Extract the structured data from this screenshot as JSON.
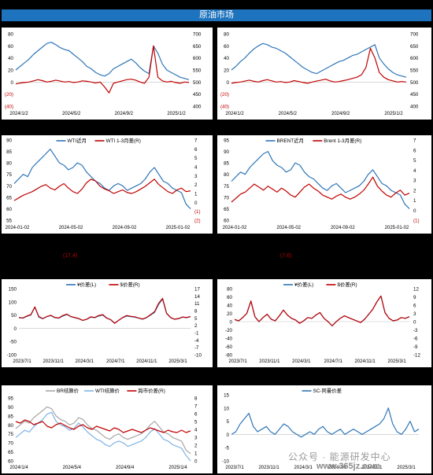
{
  "banner_title": "原油市场",
  "notes": {
    "left_mid": "(17.4)",
    "right_mid": "(7.6)"
  },
  "watermark": "公众号 · 能源研发中心",
  "watermark_site": "www.365jz.com",
  "colors": {
    "blue": "#2e75b6",
    "red": "#c00000",
    "gray": "#a6a6a6",
    "lightblue": "#7fb2e5"
  },
  "chart_data": [
    {
      "type": "line",
      "id": "p1",
      "x_ticks": [
        "2024/1/2",
        "2024/5/2",
        "2024/9/2",
        "2025/1/2"
      ],
      "y_left": {
        "ticks": [
          "80",
          "60",
          "40",
          "20",
          "0",
          "(20)",
          "(40)"
        ],
        "range": [
          -40,
          80
        ]
      },
      "y_right": {
        "ticks": [
          "700",
          "650",
          "600",
          "550",
          "500",
          "450",
          "400"
        ],
        "range": [
          400,
          700
        ]
      },
      "series": [
        {
          "axis": "left",
          "color": "blue",
          "values": [
            20,
            26,
            32,
            38,
            46,
            52,
            58,
            64,
            66,
            62,
            57,
            54,
            52,
            46,
            40,
            34,
            26,
            22,
            16,
            12,
            10,
            14,
            22,
            26,
            30,
            34,
            38,
            32,
            24,
            18,
            14,
            60,
            48,
            30,
            20,
            16,
            12,
            8,
            6,
            4
          ]
        },
        {
          "axis": "right",
          "color": "red",
          "values": [
            492,
            496,
            498,
            500,
            505,
            510,
            506,
            500,
            503,
            508,
            504,
            500,
            502,
            498,
            500,
            505,
            503,
            500,
            496,
            500,
            480,
            455,
            495,
            500,
            505,
            510,
            512,
            508,
            500,
            495,
            520,
            650,
            520,
            505,
            500,
            503,
            498,
            495,
            500,
            498
          ]
        }
      ]
    },
    {
      "type": "line",
      "id": "p2",
      "x_ticks": [
        "2024/1/2",
        "2024/5/2",
        "2024/9/2",
        "2025/1/2"
      ],
      "y_left": {
        "ticks": [
          "80",
          "60",
          "40",
          "20",
          "0",
          "(20)",
          "(40)"
        ],
        "range": [
          -40,
          80
        ]
      },
      "y_right": {
        "ticks": [
          "700",
          "650",
          "600",
          "550",
          "500",
          "450",
          "400"
        ],
        "range": [
          400,
          700
        ]
      },
      "series": [
        {
          "axis": "left",
          "color": "blue",
          "values": [
            20,
            26,
            34,
            40,
            48,
            55,
            60,
            64,
            62,
            58,
            56,
            52,
            48,
            42,
            36,
            30,
            24,
            20,
            16,
            14,
            18,
            22,
            26,
            30,
            34,
            36,
            40,
            44,
            46,
            50,
            54,
            58,
            62,
            40,
            30,
            22,
            16,
            12,
            10,
            8
          ]
        },
        {
          "axis": "right",
          "color": "red",
          "values": [
            495,
            498,
            500,
            504,
            508,
            503,
            500,
            506,
            510,
            505,
            500,
            502,
            498,
            500,
            506,
            502,
            498,
            495,
            500,
            504,
            508,
            512,
            505,
            500,
            502,
            506,
            510,
            515,
            520,
            530,
            560,
            640,
            600,
            540,
            520,
            510,
            505,
            500,
            502,
            500
          ]
        }
      ]
    },
    {
      "type": "line",
      "id": "p3",
      "legend": [
        "WTI近月",
        "WTI 1-3月差(R)"
      ],
      "x_ticks": [
        "2024-01-02",
        "2024-05-02",
        "2024-09-02",
        "2025-01-02"
      ],
      "y_left": {
        "ticks": [
          "90",
          "85",
          "80",
          "75",
          "70",
          "65",
          "60",
          "55"
        ],
        "range": [
          55,
          90
        ]
      },
      "y_right": {
        "ticks": [
          "7",
          "6",
          "5",
          "4",
          "3",
          "2",
          "1",
          "0",
          "(1)",
          "(2)"
        ],
        "range": [
          -2,
          7
        ]
      },
      "series": [
        {
          "name": "WTI近月",
          "axis": "left",
          "color": "blue",
          "values": [
            71,
            73,
            75,
            74,
            78,
            80,
            82,
            84,
            86,
            83,
            80,
            79,
            77,
            78,
            80,
            79,
            76,
            74,
            72,
            71,
            69,
            68,
            70,
            71,
            70,
            68,
            69,
            70,
            71,
            73,
            76,
            78,
            75,
            72,
            71,
            69,
            68,
            67,
            62,
            60
          ]
        },
        {
          "name": "WTI 1-3月差(R)",
          "axis": "right",
          "color": "red",
          "values": [
            0.2,
            0.5,
            0.8,
            1.0,
            1.2,
            1.5,
            1.8,
            2.0,
            1.6,
            1.4,
            1.8,
            2.1,
            1.6,
            1.2,
            1.0,
            1.5,
            2.2,
            2.6,
            2.4,
            1.8,
            1.5,
            1.3,
            1.0,
            1.2,
            1.4,
            1.1,
            1.0,
            1.2,
            1.5,
            1.8,
            2.2,
            2.6,
            2.0,
            1.6,
            1.2,
            1.0,
            1.4,
            1.6,
            1.2,
            1.3
          ]
        }
      ]
    },
    {
      "type": "line",
      "id": "p4",
      "legend": [
        "BRENT近月",
        "Brent 1-3月差(R)"
      ],
      "x_ticks": [
        "2024-01-02",
        "2024-05-02",
        "2024-09-02",
        "2025-01-02"
      ],
      "y_left": {
        "ticks": [
          "95",
          "90",
          "85",
          "80",
          "75",
          "70",
          "65",
          "60"
        ],
        "range": [
          60,
          95
        ]
      },
      "y_right": {
        "ticks": [
          "7",
          "6",
          "5",
          "4",
          "3",
          "2",
          "1",
          "0",
          "(1)"
        ],
        "range": [
          -1,
          7
        ]
      },
      "series": [
        {
          "name": "BRENT近月",
          "axis": "left",
          "color": "blue",
          "values": [
            77,
            79,
            81,
            80,
            83,
            85,
            87,
            89,
            90,
            86,
            84,
            83,
            81,
            82,
            85,
            84,
            81,
            79,
            78,
            76,
            74,
            73,
            75,
            76,
            74,
            72,
            73,
            74,
            75,
            77,
            80,
            82,
            79,
            76,
            75,
            73,
            72,
            71,
            67,
            65
          ]
        },
        {
          "name": "Brent 1-3月差(R)",
          "axis": "right",
          "color": "red",
          "values": [
            0.8,
            1.2,
            1.6,
            1.8,
            2.2,
            2.6,
            2.3,
            2.0,
            2.4,
            2.1,
            1.8,
            2.2,
            1.9,
            1.5,
            1.3,
            1.8,
            2.3,
            2.6,
            2.2,
            1.9,
            1.5,
            1.3,
            1.1,
            1.4,
            1.6,
            1.3,
            1.1,
            1.3,
            1.6,
            2.0,
            2.6,
            3.3,
            2.4,
            1.9,
            1.5,
            1.3,
            1.7,
            2.0,
            1.5,
            1.7
          ]
        }
      ]
    },
    {
      "type": "line",
      "id": "p5",
      "legend": [
        "¥价差(L)",
        "$价差(R)"
      ],
      "x_ticks": [
        "2023/7/1",
        "2023/11/1",
        "2024/3/1",
        "2024/7/1",
        "2024/11/1",
        "2025/3/1"
      ],
      "y_left": {
        "ticks": [
          "150",
          "100",
          "50",
          "0",
          "-50",
          "-100"
        ],
        "range": [
          -100,
          150
        ]
      },
      "y_right": {
        "ticks": [
          "17",
          "14",
          "11",
          "8",
          "5",
          "2",
          "-1",
          "-4",
          "-7",
          "-10"
        ],
        "range": [
          -10,
          17
        ]
      },
      "series": [
        {
          "name": "¥价差(L)",
          "axis": "left",
          "color": "blue",
          "values": [
            40,
            38,
            45,
            50,
            80,
            42,
            36,
            44,
            48,
            40,
            38,
            46,
            52,
            44,
            40,
            36,
            30,
            34,
            42,
            40,
            46,
            50,
            38,
            32,
            20,
            30,
            40,
            46,
            44,
            42,
            38,
            34,
            40,
            50,
            60,
            90,
            110,
            56,
            40,
            34,
            36,
            42,
            40,
            44
          ]
        },
        {
          "name": "$价差(R)",
          "axis": "right",
          "color": "red",
          "values": [
            5.2,
            5.0,
            5.8,
            6.4,
            9.5,
            5.6,
            4.8,
            5.6,
            6.1,
            5.2,
            5.0,
            6.0,
            6.6,
            5.6,
            5.2,
            4.8,
            4.0,
            4.5,
            5.5,
            5.2,
            6.0,
            6.4,
            5.0,
            4.3,
            2.8,
            4.0,
            5.2,
            6.0,
            5.7,
            5.5,
            5.0,
            4.6,
            5.2,
            6.4,
            7.6,
            11.0,
            13.0,
            7.0,
            5.2,
            4.5,
            4.8,
            5.4,
            5.2,
            5.6
          ]
        }
      ]
    },
    {
      "type": "line",
      "id": "p6",
      "legend": [
        "¥价差(L)",
        "$价差(R)"
      ],
      "x_ticks": [
        "2023/7/1",
        "2023/11/1",
        "2024/3/1",
        "2024/7/1",
        "2024/11/1",
        "2025/3/1"
      ],
      "y_left": {
        "ticks": [
          "80",
          "60",
          "40",
          "20",
          "0",
          "-20",
          "-40",
          "-60",
          "-80"
        ],
        "range": [
          -80,
          80
        ]
      },
      "y_right": {
        "ticks": [
          "12",
          "9",
          "6",
          "3",
          "0",
          "-3",
          "-6",
          "-9",
          "-12"
        ],
        "range": [
          -12,
          12
        ]
      },
      "series": [
        {
          "name": "¥价差(L)",
          "axis": "left",
          "color": "blue",
          "values": [
            5,
            2,
            10,
            20,
            50,
            12,
            0,
            10,
            18,
            6,
            2,
            14,
            28,
            16,
            8,
            4,
            -4,
            2,
            10,
            8,
            16,
            22,
            8,
            0,
            -10,
            0,
            8,
            14,
            10,
            6,
            2,
            -2,
            6,
            18,
            30,
            48,
            62,
            22,
            8,
            2,
            4,
            10,
            8,
            12
          ]
        },
        {
          "name": "$价差(R)",
          "axis": "right",
          "color": "red",
          "values": [
            0.8,
            0.3,
            1.5,
            3.0,
            7.5,
            1.8,
            0.0,
            1.5,
            2.7,
            0.9,
            0.3,
            2.1,
            4.2,
            2.4,
            1.2,
            0.6,
            -0.6,
            0.3,
            1.5,
            1.2,
            2.4,
            3.3,
            1.2,
            0.0,
            -1.5,
            0.0,
            1.2,
            2.1,
            1.5,
            0.9,
            0.3,
            -0.3,
            0.9,
            2.7,
            4.5,
            7.2,
            9.3,
            3.3,
            1.2,
            0.3,
            0.6,
            1.5,
            1.2,
            1.8
          ]
        }
      ]
    },
    {
      "type": "line",
      "id": "p7",
      "legend": [
        "BR结算价",
        "WTI结算价",
        "跨市价差(R)"
      ],
      "x_ticks": [
        "2024/1/4",
        "2024/5/4",
        "2024/9/4",
        "2025/1/4"
      ],
      "y_left": {
        "ticks": [
          "95",
          "90",
          "85",
          "80",
          "75",
          "70",
          "65",
          "60"
        ],
        "range": [
          60,
          95
        ]
      },
      "y_right": {
        "ticks": [
          "8",
          "7",
          "6",
          "5",
          "4",
          "3",
          "2",
          "1",
          "0"
        ],
        "range": [
          0,
          8
        ]
      },
      "series": [
        {
          "name": "BR结算价",
          "axis": "left",
          "color": "gray",
          "values": [
            78,
            80,
            82,
            81,
            84,
            86,
            88,
            90,
            89,
            85,
            83,
            82,
            80,
            81,
            84,
            83,
            80,
            78,
            77,
            75,
            73,
            72,
            74,
            75,
            73,
            72,
            73,
            74,
            75,
            77,
            80,
            82,
            79,
            76,
            75,
            73,
            72,
            71,
            66,
            64
          ]
        },
        {
          "name": "WTI结算价",
          "axis": "left",
          "color": "lightblue",
          "values": [
            73,
            75,
            77,
            76,
            79,
            81,
            83,
            86,
            87,
            82,
            80,
            79,
            77,
            78,
            81,
            79,
            76,
            74,
            72,
            71,
            69,
            68,
            70,
            71,
            70,
            68,
            69,
            70,
            71,
            73,
            76,
            78,
            75,
            72,
            71,
            69,
            68,
            67,
            63,
            60
          ]
        },
        {
          "name": "跨市价差(R)",
          "axis": "right",
          "color": "red",
          "values": [
            5.0,
            4.8,
            5.2,
            5.0,
            4.6,
            4.8,
            5.0,
            4.4,
            4.2,
            4.6,
            4.8,
            4.5,
            4.2,
            4.0,
            4.4,
            4.6,
            4.2,
            4.0,
            4.4,
            4.2,
            4.0,
            3.8,
            4.2,
            4.0,
            3.6,
            3.8,
            4.0,
            3.8,
            3.6,
            3.9,
            4.2,
            4.0,
            3.8,
            3.6,
            3.9,
            3.7,
            3.6,
            3.9,
            3.6,
            3.8
          ]
        }
      ]
    },
    {
      "type": "line",
      "id": "p8",
      "legend": [
        "SC-阿曼价差"
      ],
      "x_ticks": [
        "2023/7/1",
        "2023/11/1",
        "2024/3/1",
        "2024/7/1",
        "2024/11/1",
        "2025/3/1"
      ],
      "y_left": {
        "ticks": [
          "15",
          "10",
          "5",
          "0",
          "-5",
          "-10"
        ],
        "range": [
          -10,
          15
        ]
      },
      "series": [
        {
          "name": "SC-阿曼价差",
          "axis": "left",
          "color": "blue",
          "values": [
            0,
            1,
            4,
            6,
            8,
            3,
            1,
            2,
            3,
            1,
            0,
            2,
            4,
            3,
            1,
            0,
            -1,
            0,
            1,
            0,
            2,
            3,
            1,
            0,
            1,
            2,
            0,
            1,
            2,
            1,
            0,
            1,
            2,
            3,
            4,
            6,
            10,
            4,
            1,
            0,
            2,
            5,
            1,
            2
          ]
        }
      ]
    }
  ]
}
